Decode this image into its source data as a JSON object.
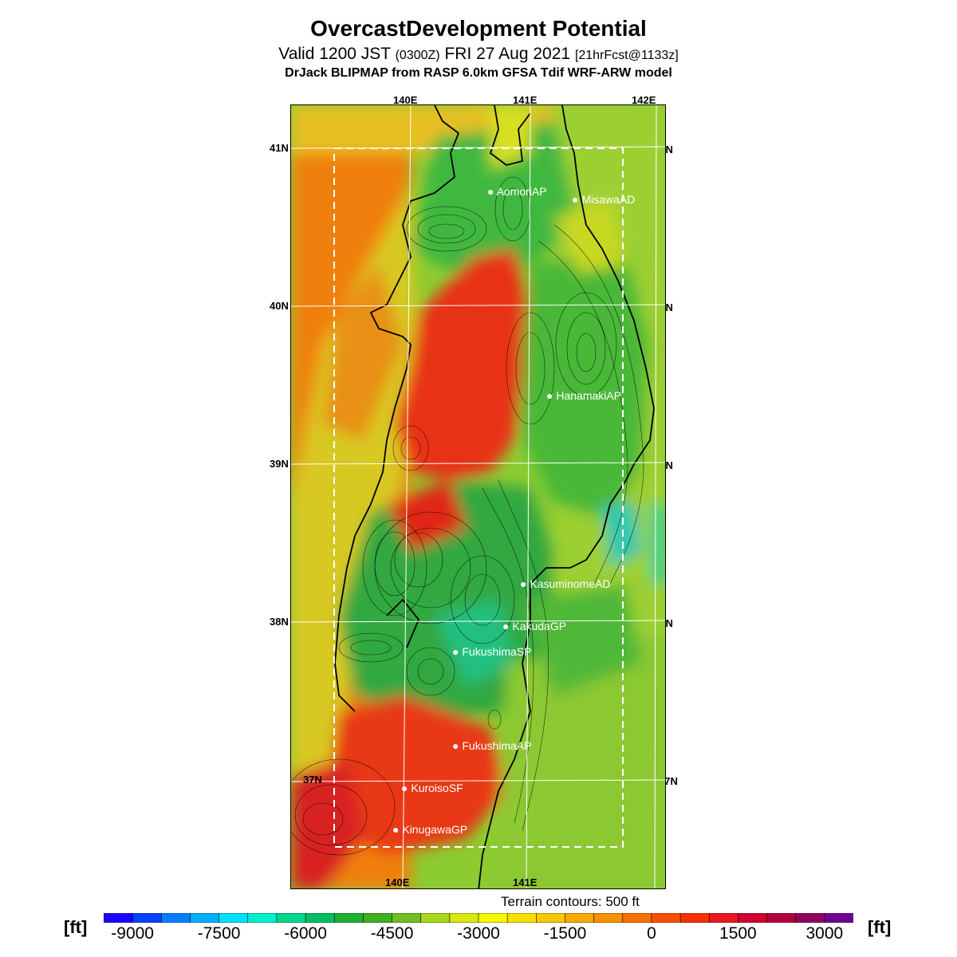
{
  "header": {
    "title": "OvercastDevelopment Potential",
    "valid_main": "Valid 1200 JST",
    "valid_zulu": "(0300Z)",
    "valid_date": "FRI 27 Aug 2021",
    "forecast": "[21hrFcst@1133z]",
    "source": "DrJack BLIPMAP from RASP 6.0km GFSA Tdif WRF-ARW model"
  },
  "map": {
    "lon_labels": [
      "140E",
      "141E",
      "142E"
    ],
    "lat_labels": [
      "41N",
      "40N",
      "39N",
      "38N",
      "37N"
    ],
    "stations": [
      "AomoriAP",
      "MisawaAD",
      "HanamakiAP",
      "KasuminomeAD",
      "KakudaGP",
      "FukushimaSP",
      "FukushimaAP",
      "KuroisoSF",
      "KinugawaGP"
    ],
    "terrain_note": "Terrain contours: 500 ft"
  },
  "legend": {
    "unit": "[ft]",
    "ticks": [
      "-9000",
      "-7500",
      "-6000",
      "-4500",
      "-3000",
      "-1500",
      "0",
      "1500",
      "3000"
    ],
    "colors": [
      "#1e00ff",
      "#0040ff",
      "#0080ff",
      "#00b0ff",
      "#00e0ff",
      "#00f0d0",
      "#00d890",
      "#00c060",
      "#20b030",
      "#40b020",
      "#70c020",
      "#a8d818",
      "#d8e810",
      "#f8f800",
      "#f8e000",
      "#f8c800",
      "#f8a800",
      "#f89000",
      "#f87000",
      "#f85000",
      "#f83000",
      "#e81820",
      "#d00030",
      "#b00040",
      "#900060",
      "#700090"
    ]
  },
  "colors": {
    "sea_warm": "#f07a10",
    "land_red": "#e8301a",
    "land_green": "#38b040",
    "land_yellow": "#d8e020",
    "cyan": "#30d8b0",
    "coast": "#000000",
    "grid": "#ffffff"
  }
}
